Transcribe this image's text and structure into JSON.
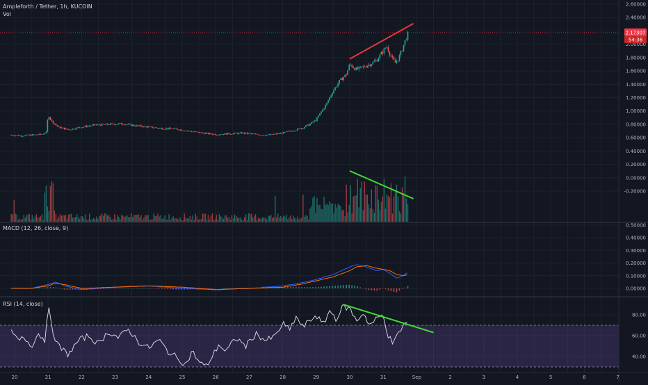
{
  "header": {
    "symbol_line": "Ampleforth / Tether, 1h, KUCOIN",
    "vol_label": "Vol"
  },
  "macd_pane": {
    "label": "MACD (12, 26, close, 9)"
  },
  "rsi_pane": {
    "label": "RSI (14, close)"
  },
  "price_tag": {
    "value": "2.17307",
    "countdown": "54:36"
  },
  "colors": {
    "background": "#131722",
    "grid": "#1e222d",
    "bull": "#26a69a",
    "bear": "#ef5350",
    "macd_line": "#2962ff",
    "signal_line": "#ff6d00",
    "rsi_line": "#d1d4dc",
    "rsi_band": "#7e57c2",
    "trend_red": "#e03a3a",
    "trend_green": "#3ddc2f",
    "price_line": "#f23645"
  },
  "chart_data": [
    {
      "type": "candlestick",
      "title": "Ampleforth / Tether, 1h, KUCOIN",
      "y_ticks": [
        "2.60000",
        "2.40000",
        "2.20000",
        "2.00000",
        "1.80000",
        "1.60000",
        "1.40000",
        "1.20000",
        "1.00000",
        "0.80000",
        "0.60000",
        "0.40000",
        "0.20000",
        "0.00000",
        "-0.20000"
      ],
      "ylim": [
        -0.3,
        2.65
      ],
      "x_ticks": [
        "20",
        "21",
        "22",
        "23",
        "24",
        "25",
        "26",
        "27",
        "28",
        "29",
        "30",
        "31",
        "Sep",
        "2",
        "3",
        "4",
        "5",
        "6",
        "7"
      ],
      "close_path": {
        "x_day": [
          19.9,
          20.2,
          20.5,
          20.8,
          20.95,
          21.0,
          21.1,
          21.3,
          21.6,
          22.0,
          22.4,
          22.8,
          23.2,
          23.6,
          24.0,
          24.4,
          24.8,
          25.2,
          25.6,
          26.0,
          26.4,
          26.8,
          27.2,
          27.6,
          28.0,
          28.4,
          28.6,
          28.8,
          29.0,
          29.1,
          29.3,
          29.5,
          29.7,
          29.9,
          30.0,
          30.2,
          30.4,
          30.6,
          30.8,
          31.0,
          31.1,
          31.25,
          31.35,
          31.45,
          31.55,
          31.65,
          31.75
        ],
        "y": [
          0.64,
          0.63,
          0.64,
          0.65,
          0.68,
          0.95,
          0.85,
          0.76,
          0.72,
          0.76,
          0.79,
          0.8,
          0.81,
          0.78,
          0.76,
          0.74,
          0.73,
          0.7,
          0.67,
          0.65,
          0.66,
          0.67,
          0.65,
          0.64,
          0.67,
          0.72,
          0.75,
          0.8,
          0.87,
          0.95,
          1.1,
          1.3,
          1.45,
          1.55,
          1.7,
          1.62,
          1.66,
          1.7,
          1.76,
          1.9,
          1.97,
          1.8,
          1.72,
          1.78,
          1.9,
          2.05,
          2.17
        ]
      },
      "price_level": 2.17307,
      "trendline_red": {
        "from": [
          30.0,
          1.78
        ],
        "to": [
          31.9,
          2.31
        ]
      }
    },
    {
      "type": "bar",
      "title": "Vol",
      "trendline_green": {
        "x_day_from": 30.0,
        "x_day_to": 31.9,
        "height_from": 0.84,
        "height_to": 0.38
      }
    },
    {
      "type": "line",
      "title": "MACD (12, 26, close, 9)",
      "y_ticks": [
        "0.50000",
        "0.40000",
        "0.30000",
        "0.20000",
        "0.10000",
        "0.00000"
      ],
      "ylim": [
        -0.04,
        0.52
      ],
      "series": [
        {
          "values_x_day": [
            19.9,
            20.5,
            21.0,
            21.2,
            21.5,
            22.0,
            23.0,
            24.0,
            25.0,
            26.0,
            27.0,
            28.0,
            28.5,
            29.0,
            29.5,
            30.0,
            30.2,
            30.5,
            30.8,
            31.0,
            31.2,
            31.4,
            31.6,
            31.75
          ],
          "values": [
            0.0,
            0.0,
            0.03,
            0.05,
            0.02,
            -0.01,
            0.01,
            0.02,
            0.0,
            -0.01,
            0.0,
            0.02,
            0.04,
            0.07,
            0.11,
            0.17,
            0.19,
            0.17,
            0.14,
            0.15,
            0.12,
            0.08,
            0.1,
            0.13
          ]
        },
        {
          "values_x_day": [
            19.9,
            20.5,
            21.0,
            21.2,
            21.5,
            22.0,
            23.0,
            24.0,
            25.0,
            26.0,
            27.0,
            28.0,
            28.5,
            29.0,
            29.5,
            30.0,
            30.2,
            30.5,
            30.8,
            31.0,
            31.2,
            31.4,
            31.6,
            31.75
          ],
          "values": [
            0.0,
            0.0,
            0.02,
            0.04,
            0.03,
            0.0,
            0.01,
            0.02,
            0.01,
            -0.01,
            0.0,
            0.01,
            0.03,
            0.06,
            0.09,
            0.14,
            0.17,
            0.18,
            0.16,
            0.15,
            0.14,
            0.11,
            0.1,
            0.11
          ]
        }
      ]
    },
    {
      "type": "line",
      "title": "RSI (14, close)",
      "y_ticks": [
        "80.00",
        "60.00",
        "40.00"
      ],
      "ylim": [
        30,
        95
      ],
      "bands": [
        30,
        70
      ],
      "series": [
        {
          "values_x_day": [
            19.9,
            20.1,
            20.3,
            20.5,
            20.7,
            20.9,
            21.0,
            21.1,
            21.3,
            21.6,
            21.9,
            22.2,
            22.5,
            22.8,
            23.1,
            23.4,
            23.7,
            24.0,
            24.3,
            24.6,
            24.9,
            25.1,
            25.3,
            25.5,
            25.7,
            25.9,
            26.1,
            26.3,
            26.6,
            26.9,
            27.2,
            27.5,
            27.8,
            28.0,
            28.2,
            28.4,
            28.6,
            28.8,
            29.0,
            29.2,
            29.4,
            29.6,
            29.8,
            30.0,
            30.2,
            30.4,
            30.6,
            30.8,
            31.0,
            31.15,
            31.3,
            31.45,
            31.6,
            31.75
          ],
          "values": [
            64,
            55,
            58,
            50,
            62,
            56,
            90,
            68,
            50,
            42,
            55,
            60,
            52,
            64,
            58,
            66,
            54,
            48,
            56,
            44,
            38,
            32,
            45,
            35,
            30,
            40,
            52,
            44,
            58,
            50,
            62,
            55,
            60,
            72,
            65,
            78,
            68,
            74,
            80,
            70,
            84,
            76,
            88,
            86,
            74,
            82,
            70,
            76,
            80,
            60,
            52,
            62,
            70,
            73
          ]
        }
      ],
      "trendline_green": {
        "from": [
          29.8,
          90
        ],
        "to": [
          32.5,
          63
        ]
      }
    }
  ]
}
